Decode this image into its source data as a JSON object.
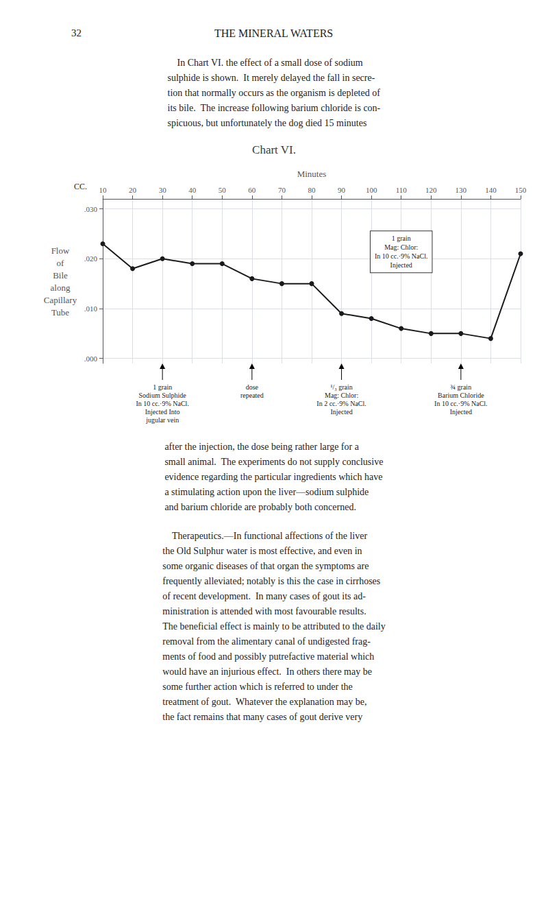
{
  "page": {
    "number": "32",
    "header": "THE MINERAL WATERS",
    "paragraphs": [
      "    In Chart VI. the effect of a small dose of sodium\nsulphide is shown.  It merely delayed the fall in secre-\ntion that normally occurs as the organism is depleted of\nits bile.  The increase following barium chloride is con-\nspicuous, but unfortunately the dog died 15 minutes",
      "after the injection, the dose being rather large for a\nsmall animal.  The experiments do not supply conclusive\nevidence regarding the particular ingredients which have\na stimulating action upon the liver—sodium sulphide\nand barium chloride are probably both concerned.",
      "    Therapeutics.—In functional affections of the liver\nthe Old Sulphur water is most effective, and even in\nsome organic diseases of that organ the symptoms are\nfrequently alleviated; notably is this the case in cirrhoses\nof recent development.  In many cases of gout its ad-\nministration is attended with most favourable results.\nThe beneficial effect is mainly to be attributed to the daily\nremoval from the alimentary canal of undigested frag-\nments of food and possibly putrefactive material which\nwould have an injurious effect.  In others there may be\nsome further action which is referred to under the\ntreatment of gout.  Whatever the explanation may be,\nthe fact remains that many cases of gout derive very"
    ]
  },
  "chart_data": {
    "type": "line",
    "title": "Chart VI.",
    "x_label": "Minutes",
    "y_label": [
      "Flow",
      "of",
      "Bile",
      "along",
      "Capillary",
      "Tube"
    ],
    "y_unit_label": "CC.",
    "x": [
      10,
      20,
      30,
      40,
      50,
      60,
      70,
      80,
      90,
      100,
      110,
      120,
      130,
      140,
      150
    ],
    "values": [
      0.023,
      0.018,
      0.02,
      0.019,
      0.019,
      0.016,
      0.015,
      0.015,
      0.009,
      0.008,
      0.006,
      0.005,
      0.005,
      0.004,
      0.021
    ],
    "color": "#1a1a1a",
    "marker": "circle",
    "xlim": [
      10,
      150
    ],
    "xticks": [
      10,
      20,
      30,
      40,
      50,
      60,
      70,
      80,
      90,
      100,
      110,
      120,
      130,
      140,
      150
    ],
    "ylim": [
      -0.001,
      0.032
    ],
    "yticks": [
      {
        "value": 0.0,
        "label": ".000"
      },
      {
        "value": 0.01,
        "label": ".010"
      },
      {
        "value": 0.02,
        "label": ".020"
      },
      {
        "value": 0.03,
        "label": ".030"
      }
    ],
    "grid": true,
    "annotations": [
      {
        "x": 30,
        "lines": [
          "1 grain",
          "Sodium Sulphide",
          "In 10 cc.·9% NaCl.",
          "Injected Into",
          "jugular vein"
        ]
      },
      {
        "x": 60,
        "lines": [
          "dose",
          "repeated"
        ]
      },
      {
        "x": 90,
        "lines": [
          "¹/₃ grain",
          "Mag: Chlor:",
          "In 2 cc.·9% NaCl.",
          "Injected"
        ]
      },
      {
        "x": 130,
        "lines": [
          "¾ grain",
          "Barium Chloride",
          "In 10 cc.·9% NaCl.",
          "Injected"
        ]
      },
      {
        "x": 110,
        "y": 0.0255,
        "lines": [
          "1 grain",
          "Mag: Chlor:",
          "In 10 cc.·9% NaCl.",
          "Injected"
        ]
      }
    ]
  }
}
